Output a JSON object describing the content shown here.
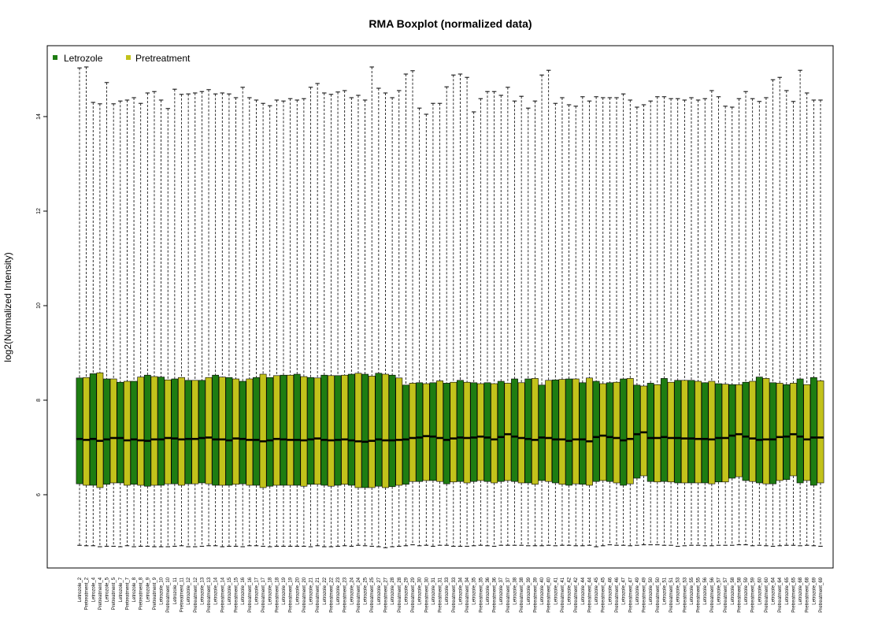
{
  "chart_data": {
    "type": "boxplot",
    "title": "RMA Boxplot (normalized data)",
    "xlabel": "",
    "ylabel": "log2(Normalized Intensity)",
    "ylim": [
      4.8,
      15.2
    ],
    "yticks": [
      6,
      8,
      10,
      12,
      14
    ],
    "grid": false,
    "legend_position": "top-left",
    "legend": [
      {
        "name": "Letrozole",
        "color": "#1e7d12"
      },
      {
        "name": "Pretreatment",
        "color": "#c2c21b"
      }
    ],
    "colors": {
      "Letrozole": "#1e7d12",
      "Pretreatment": "#c2c21b"
    },
    "categories": [
      "Letrozole_2",
      "Pretreatment_2",
      "Letrozole_4",
      "Pretreatment_4",
      "Letrozole_5",
      "Pretreatment_5",
      "Letrozole_7",
      "Pretreatment_7",
      "Letrozole_8",
      "Pretreatment_8",
      "Letrozole_9",
      "Pretreatment_9",
      "Letrozole_10",
      "Pretreatment_10",
      "Letrozole_11",
      "Pretreatment_11",
      "Letrozole_12",
      "Pretreatment_12",
      "Letrozole_13",
      "Pretreatment_13",
      "Letrozole_14",
      "Pretreatment_14",
      "Letrozole_15",
      "Pretreatment_15",
      "Letrozole_16",
      "Pretreatment_16",
      "Letrozole_17",
      "Pretreatment_17",
      "Letrozole_18",
      "Pretreatment_18",
      "Letrozole_19",
      "Pretreatment_19",
      "Letrozole_20",
      "Pretreatment_20",
      "Letrozole_21",
      "Pretreatment_21",
      "Letrozole_22",
      "Pretreatment_22",
      "Letrozole_23",
      "Pretreatment_23",
      "Letrozole_24",
      "Pretreatment_24",
      "Letrozole_25",
      "Pretreatment_25",
      "Letrozole_27",
      "Pretreatment_27",
      "Letrozole_28",
      "Pretreatment_28",
      "Letrozole_29",
      "Pretreatment_29",
      "Letrozole_30",
      "Pretreatment_30",
      "Letrozole_31",
      "Pretreatment_31",
      "Letrozole_33",
      "Pretreatment_33",
      "Letrozole_34",
      "Pretreatment_34",
      "Letrozole_35",
      "Pretreatment_35",
      "Letrozole_36",
      "Pretreatment_36",
      "Letrozole_37",
      "Pretreatment_37",
      "Letrozole_38",
      "Pretreatment_38",
      "Letrozole_39",
      "Pretreatment_39",
      "Letrozole_40",
      "Pretreatment_40",
      "Letrozole_41",
      "Pretreatment_41",
      "Letrozole_42",
      "Pretreatment_42",
      "Letrozole_44",
      "Pretreatment_44",
      "Letrozole_45",
      "Pretreatment_45",
      "Letrozole_46",
      "Pretreatment_46",
      "Letrozole_47",
      "Pretreatment_47",
      "Letrozole_49",
      "Pretreatment_49",
      "Letrozole_50",
      "Pretreatment_50",
      "Letrozole_51",
      "Pretreatment_51",
      "Letrozole_53",
      "Pretreatment_53",
      "Letrozole_55",
      "Pretreatment_55",
      "Letrozole_56",
      "Pretreatment_56",
      "Letrozole_57",
      "Pretreatment_57",
      "Letrozole_58",
      "Pretreatment_58",
      "Letrozole_59",
      "Pretreatment_59",
      "Letrozole_60",
      "Pretreatment_60",
      "Letrozole_64",
      "Pretreatment_64",
      "Letrozole_65",
      "Pretreatment_65",
      "Letrozole_68",
      "Pretreatment_68",
      "Letrozole_69",
      "Pretreatment_69"
    ],
    "whisker_low": [
      4.93,
      4.92,
      4.92,
      4.9,
      4.91,
      4.91,
      4.9,
      4.92,
      4.9,
      4.91,
      4.91,
      4.9,
      4.9,
      4.9,
      4.91,
      4.92,
      4.9,
      4.9,
      4.91,
      4.92,
      4.92,
      4.9,
      4.91,
      4.91,
      4.9,
      4.92,
      4.92,
      4.91,
      4.9,
      4.91,
      4.91,
      4.91,
      4.91,
      4.91,
      4.9,
      4.92,
      4.9,
      4.9,
      4.91,
      4.92,
      4.91,
      4.93,
      4.92,
      4.91,
      4.9,
      4.88,
      4.9,
      4.91,
      4.92,
      4.94,
      4.92,
      4.93,
      4.91,
      4.93,
      4.93,
      4.91,
      4.91,
      4.91,
      4.92,
      4.93,
      4.92,
      4.91,
      4.93,
      4.93,
      4.93,
      4.93,
      4.92,
      4.92,
      4.92,
      4.93,
      4.92,
      4.93,
      4.93,
      4.92,
      4.92,
      4.93,
      4.9,
      4.92,
      4.94,
      4.93,
      4.93,
      4.92,
      4.93,
      4.94,
      4.94,
      4.94,
      4.93,
      4.93,
      4.91,
      4.92,
      4.93,
      4.93,
      4.92,
      4.92,
      4.93,
      4.93,
      4.93,
      4.94,
      4.94,
      4.92,
      4.93,
      4.92,
      4.91,
      4.92,
      4.93,
      4.93,
      4.92,
      4.93,
      4.92,
      4.91
    ],
    "q1": [
      6.23,
      6.2,
      6.2,
      6.15,
      6.22,
      6.25,
      6.25,
      6.2,
      6.22,
      6.2,
      6.18,
      6.2,
      6.2,
      6.23,
      6.23,
      6.2,
      6.23,
      6.23,
      6.25,
      6.23,
      6.2,
      6.2,
      6.2,
      6.22,
      6.23,
      6.2,
      6.2,
      6.15,
      6.18,
      6.2,
      6.2,
      6.2,
      6.2,
      6.18,
      6.22,
      6.22,
      6.2,
      6.18,
      6.2,
      6.22,
      6.2,
      6.15,
      6.15,
      6.15,
      6.18,
      6.15,
      6.17,
      6.2,
      6.22,
      6.28,
      6.28,
      6.3,
      6.3,
      6.28,
      6.23,
      6.27,
      6.28,
      6.25,
      6.28,
      6.3,
      6.28,
      6.25,
      6.28,
      6.3,
      6.28,
      6.25,
      6.25,
      6.22,
      6.3,
      6.28,
      6.25,
      6.22,
      6.2,
      6.23,
      6.22,
      6.2,
      6.28,
      6.3,
      6.28,
      6.25,
      6.2,
      6.23,
      6.35,
      6.4,
      6.28,
      6.27,
      6.28,
      6.27,
      6.25,
      6.25,
      6.25,
      6.25,
      6.25,
      6.23,
      6.27,
      6.27,
      6.35,
      6.38,
      6.3,
      6.28,
      6.25,
      6.23,
      6.23,
      6.3,
      6.32,
      6.4,
      6.25,
      6.3,
      6.2,
      6.25
    ],
    "median": [
      7.18,
      7.16,
      7.18,
      7.14,
      7.17,
      7.2,
      7.2,
      7.15,
      7.17,
      7.15,
      7.14,
      7.17,
      7.17,
      7.2,
      7.19,
      7.17,
      7.18,
      7.18,
      7.2,
      7.21,
      7.17,
      7.17,
      7.15,
      7.19,
      7.18,
      7.16,
      7.16,
      7.13,
      7.15,
      7.18,
      7.17,
      7.16,
      7.16,
      7.15,
      7.17,
      7.19,
      7.16,
      7.15,
      7.16,
      7.17,
      7.15,
      7.13,
      7.12,
      7.14,
      7.17,
      7.15,
      7.15,
      7.16,
      7.17,
      7.2,
      7.21,
      7.24,
      7.23,
      7.2,
      7.16,
      7.19,
      7.21,
      7.2,
      7.21,
      7.23,
      7.21,
      7.17,
      7.22,
      7.28,
      7.23,
      7.2,
      7.18,
      7.16,
      7.21,
      7.2,
      7.17,
      7.17,
      7.14,
      7.17,
      7.17,
      7.13,
      7.22,
      7.25,
      7.22,
      7.2,
      7.15,
      7.18,
      7.28,
      7.32,
      7.2,
      7.2,
      7.22,
      7.2,
      7.2,
      7.19,
      7.19,
      7.18,
      7.18,
      7.17,
      7.2,
      7.2,
      7.25,
      7.28,
      7.23,
      7.19,
      7.16,
      7.17,
      7.17,
      7.22,
      7.23,
      7.28,
      7.23,
      7.17,
      7.21,
      7.21
    ],
    "q3": [
      8.47,
      8.48,
      8.56,
      8.58,
      8.45,
      8.45,
      8.38,
      8.4,
      8.4,
      8.49,
      8.53,
      8.5,
      8.49,
      8.43,
      8.45,
      8.48,
      8.42,
      8.42,
      8.42,
      8.48,
      8.53,
      8.49,
      8.48,
      8.45,
      8.4,
      8.45,
      8.48,
      8.55,
      8.48,
      8.52,
      8.53,
      8.53,
      8.55,
      8.5,
      8.48,
      8.47,
      8.53,
      8.52,
      8.52,
      8.53,
      8.55,
      8.57,
      8.55,
      8.51,
      8.57,
      8.55,
      8.53,
      8.47,
      8.32,
      8.36,
      8.37,
      8.35,
      8.37,
      8.41,
      8.36,
      8.38,
      8.42,
      8.38,
      8.37,
      8.35,
      8.37,
      8.35,
      8.4,
      8.36,
      8.45,
      8.37,
      8.45,
      8.46,
      8.32,
      8.42,
      8.43,
      8.44,
      8.45,
      8.45,
      8.37,
      8.47,
      8.4,
      8.35,
      8.37,
      8.38,
      8.45,
      8.46,
      8.32,
      8.3,
      8.36,
      8.33,
      8.46,
      8.38,
      8.42,
      8.42,
      8.42,
      8.4,
      8.37,
      8.4,
      8.35,
      8.34,
      8.33,
      8.33,
      8.38,
      8.4,
      8.49,
      8.46,
      8.37,
      8.36,
      8.33,
      8.36,
      8.45,
      8.33,
      8.48,
      8.41
    ],
    "whisker_high": [
      15.03,
      15.05,
      14.3,
      14.27,
      14.72,
      14.27,
      14.33,
      14.35,
      14.4,
      14.28,
      14.5,
      14.53,
      14.35,
      14.17,
      14.58,
      14.47,
      14.48,
      14.5,
      14.53,
      14.57,
      14.48,
      14.5,
      14.48,
      14.4,
      14.62,
      14.4,
      14.35,
      14.28,
      14.23,
      14.35,
      14.33,
      14.38,
      14.35,
      14.38,
      14.62,
      14.7,
      14.5,
      14.47,
      14.52,
      14.55,
      14.4,
      14.45,
      14.35,
      15.05,
      14.6,
      14.5,
      14.4,
      14.55,
      14.9,
      14.97,
      14.18,
      14.05,
      14.28,
      14.28,
      14.63,
      14.88,
      14.9,
      14.83,
      14.1,
      14.38,
      14.53,
      14.53,
      14.45,
      14.62,
      14.33,
      14.43,
      14.18,
      14.33,
      14.88,
      14.98,
      14.28,
      14.4,
      14.25,
      14.22,
      14.42,
      14.33,
      14.42,
      14.4,
      14.4,
      14.4,
      14.48,
      14.35,
      14.2,
      14.25,
      14.33,
      14.42,
      14.42,
      14.38,
      14.38,
      14.35,
      14.4,
      14.35,
      14.38,
      14.55,
      14.42,
      14.22,
      14.2,
      14.38,
      14.53,
      14.38,
      14.32,
      14.4,
      14.78,
      14.83,
      14.55,
      14.32,
      14.98,
      14.5,
      14.35,
      14.35
    ]
  }
}
